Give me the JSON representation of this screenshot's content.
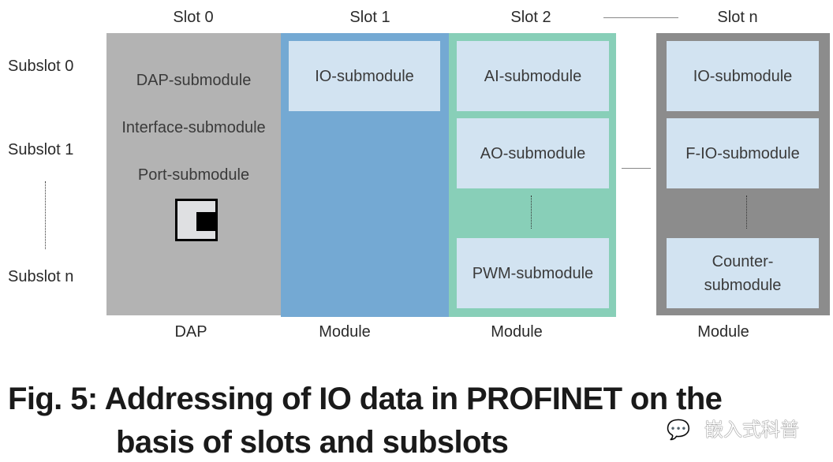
{
  "slots": [
    "Slot 0",
    "Slot 1",
    "Slot 2",
    "Slot n"
  ],
  "subslots": [
    "Subslot 0",
    "Subslot 1",
    "Subslot n"
  ],
  "dap": {
    "submodules": [
      "DAP-submodule",
      "Interface-submodule",
      "Port-submodule"
    ],
    "label": "DAP",
    "port_icon": "port-connector-icon"
  },
  "slot1": {
    "submodules": [
      "IO-submodule"
    ],
    "label": "Module"
  },
  "slot2": {
    "submodules": [
      "AI-submodule",
      "AO-submodule",
      "PWM-submodule"
    ],
    "label": "Module"
  },
  "slotn": {
    "submodules": [
      "IO-submodule",
      "F-IO-submodule",
      "Counter-\nsubmodule"
    ],
    "label": "Module"
  },
  "caption": {
    "line1": "Fig. 5: Addressing of IO data in PROFINET on the",
    "line2": "basis of slots and subslots"
  },
  "watermark": "嵌入式科普",
  "colors": {
    "dap": "#b3b3b3",
    "module1": "#74a9d3",
    "module2": "#88cfb8",
    "modulen": "#8c8c8c",
    "submodule": "#d2e3f1"
  }
}
